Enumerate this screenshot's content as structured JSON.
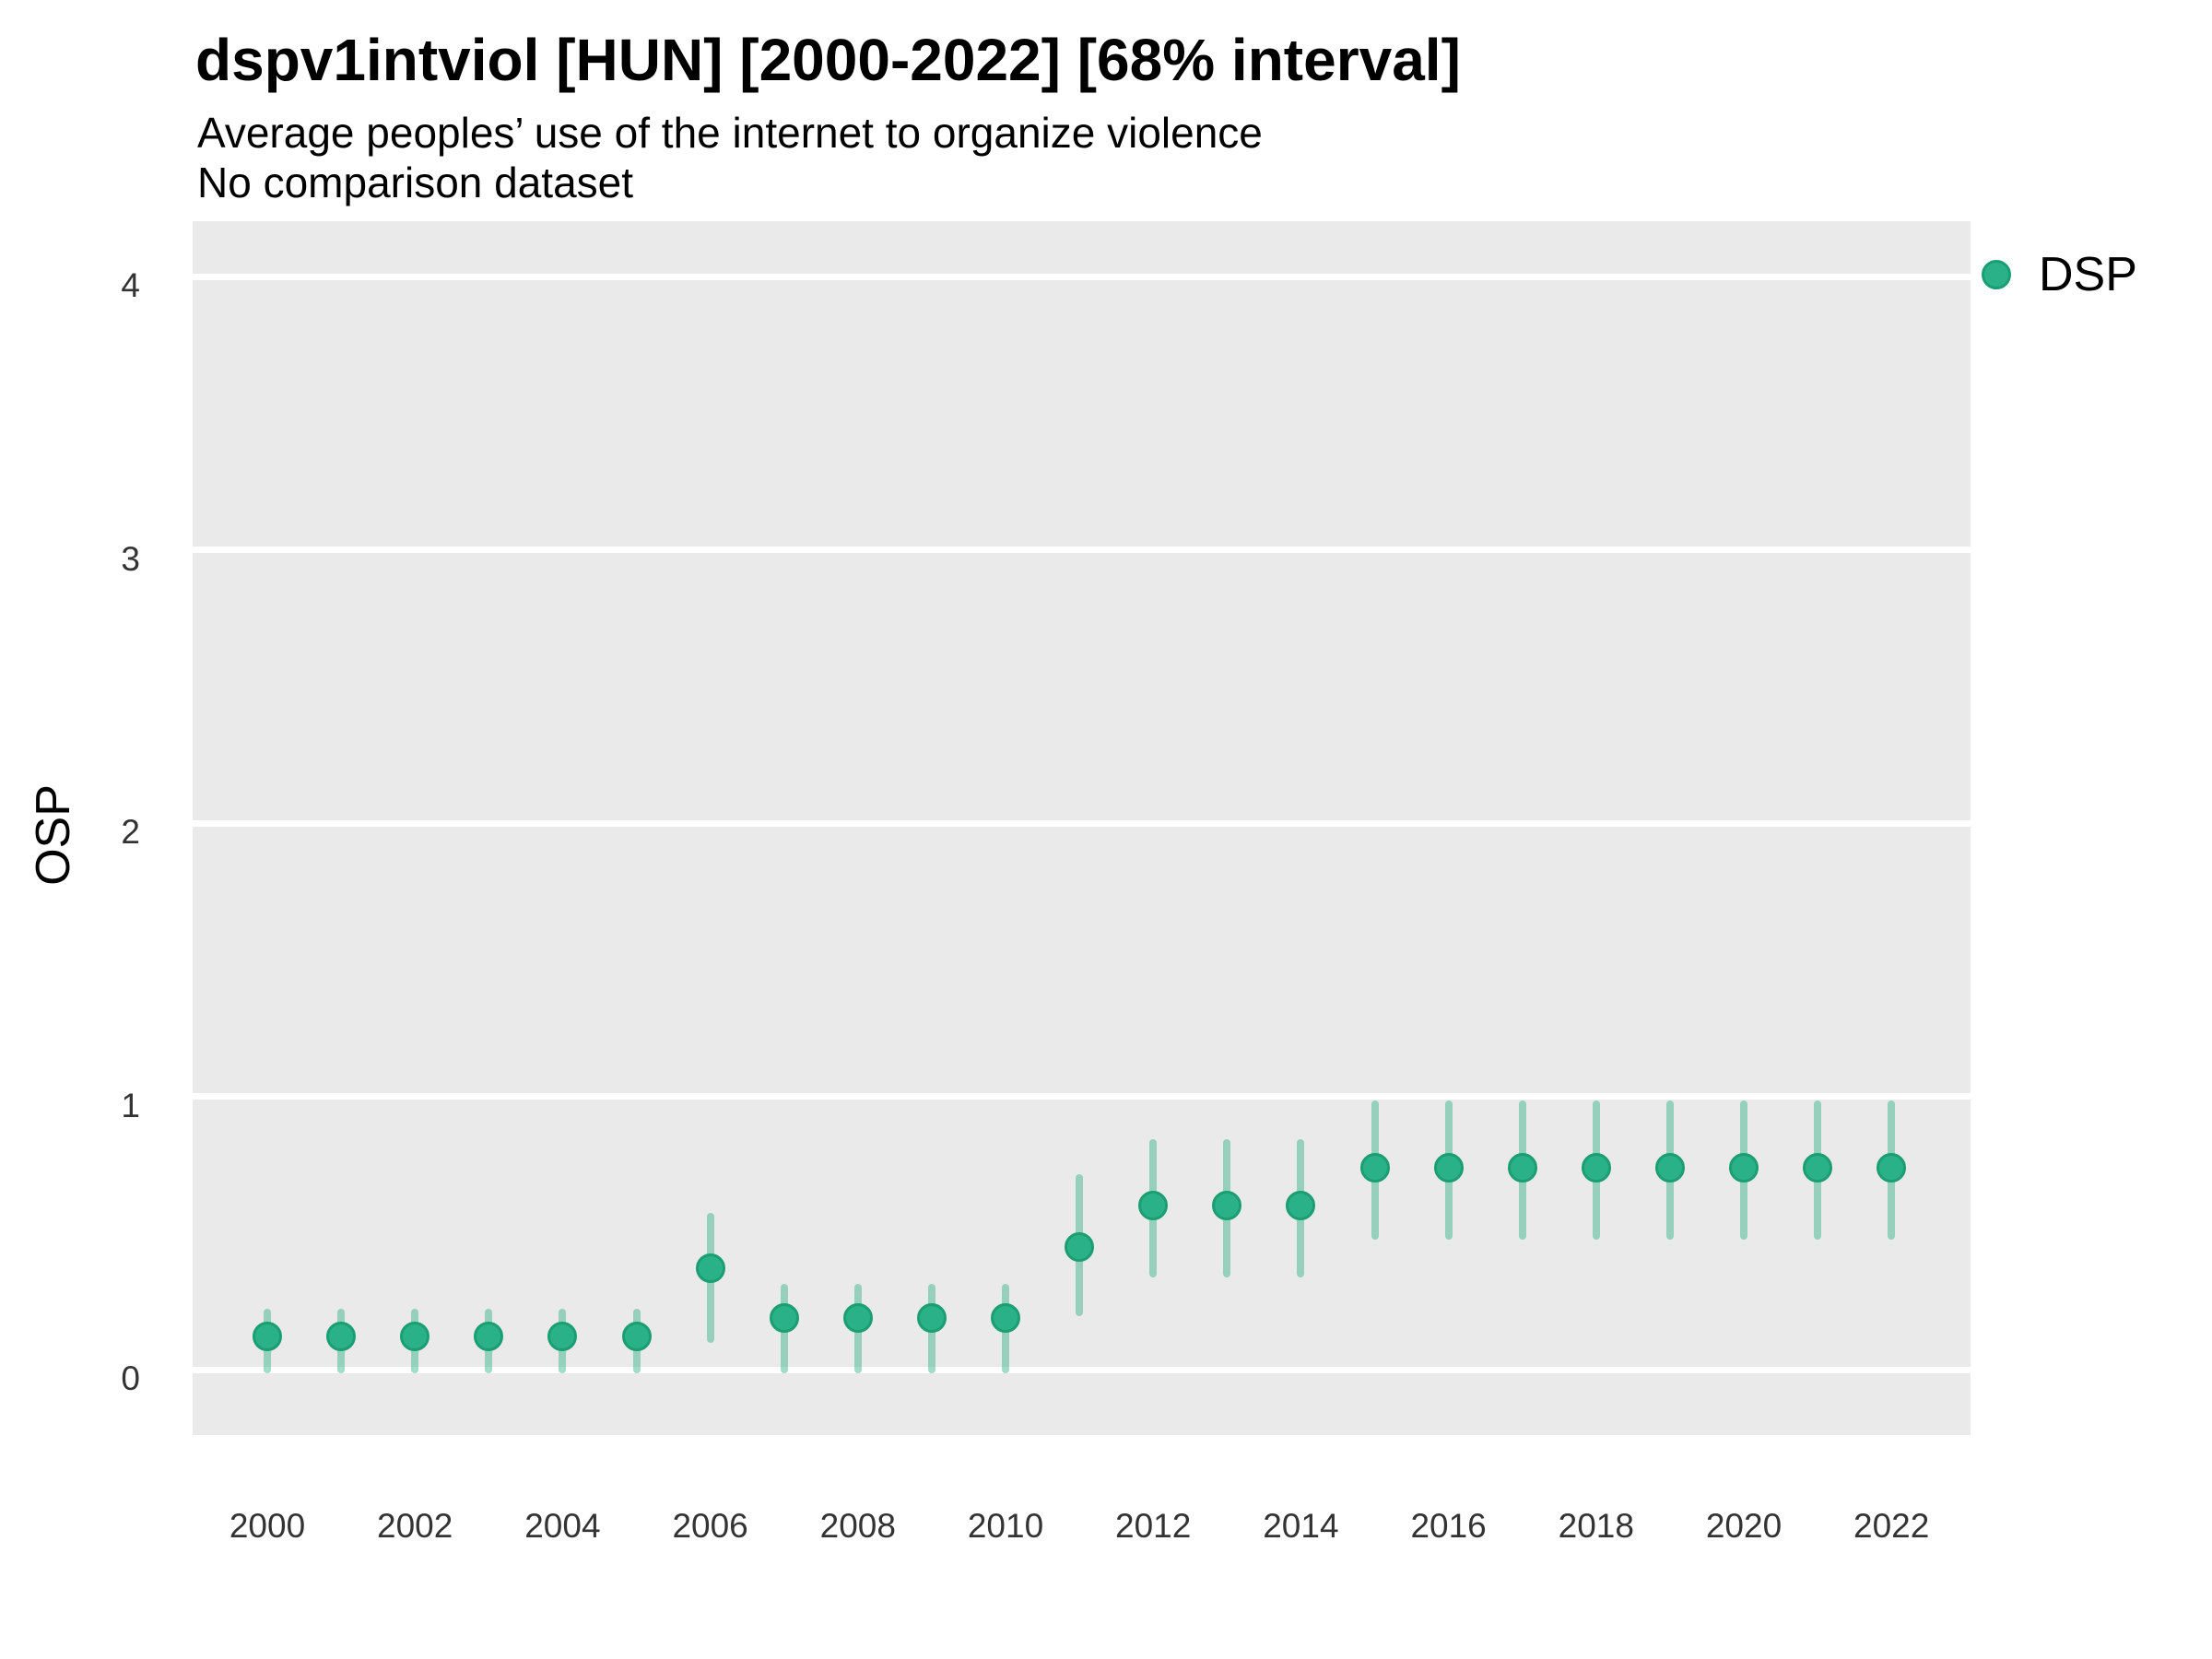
{
  "header": {
    "title": "dspv1intviol [HUN] [2000-2022] [68% interval]",
    "subtitle": "Average peoples’ use of the internet to organize violence",
    "subtitle2": "No comparison dataset"
  },
  "axes": {
    "y_label": "OSP",
    "y_ticks": [
      0,
      1,
      2,
      3,
      4
    ],
    "x_ticks": [
      2000,
      2002,
      2004,
      2006,
      2008,
      2010,
      2012,
      2014,
      2016,
      2018,
      2020,
      2022
    ]
  },
  "legend": {
    "items": [
      {
        "label": "DSP",
        "marker": "circle-icon",
        "color": "#2eb489"
      }
    ]
  },
  "colors": {
    "point_fill": "#2bb187",
    "point_border": "#1a9e72",
    "interval_bar": "rgba(46,177,135,0.45)",
    "panel_bg": "#eaeaea",
    "gridline": "#ffffff",
    "title_text": "#000000",
    "tick_text": "#333333"
  },
  "chart_data": {
    "type": "pointrange",
    "title": "dspv1intviol [HUN] [2000-2022] [68% interval]",
    "subtitle": "Average peoples’ use of the internet to organize violence",
    "caption": "No comparison dataset",
    "xlabel": "",
    "ylabel": "OSP",
    "interval": "68%",
    "ylim": [
      0,
      4
    ],
    "xlim": [
      2000,
      2022
    ],
    "grid": "major-horizontal-white-on-gray",
    "legend_position": "right-top",
    "series": [
      {
        "name": "DSP",
        "points": [
          {
            "year": 2000,
            "est": 0.12,
            "lo": 0.0,
            "hi": 0.21
          },
          {
            "year": 2001,
            "est": 0.12,
            "lo": 0.0,
            "hi": 0.21
          },
          {
            "year": 2002,
            "est": 0.12,
            "lo": 0.0,
            "hi": 0.21
          },
          {
            "year": 2003,
            "est": 0.12,
            "lo": 0.0,
            "hi": 0.21
          },
          {
            "year": 2004,
            "est": 0.12,
            "lo": 0.0,
            "hi": 0.21
          },
          {
            "year": 2005,
            "est": 0.12,
            "lo": 0.0,
            "hi": 0.21
          },
          {
            "year": 2006,
            "est": 0.37,
            "lo": 0.11,
            "hi": 0.56
          },
          {
            "year": 2007,
            "est": 0.19,
            "lo": 0.0,
            "hi": 0.3
          },
          {
            "year": 2008,
            "est": 0.19,
            "lo": 0.0,
            "hi": 0.3
          },
          {
            "year": 2009,
            "est": 0.19,
            "lo": 0.0,
            "hi": 0.3
          },
          {
            "year": 2010,
            "est": 0.19,
            "lo": 0.0,
            "hi": 0.3
          },
          {
            "year": 2011,
            "est": 0.45,
            "lo": 0.21,
            "hi": 0.7
          },
          {
            "year": 2012,
            "est": 0.6,
            "lo": 0.35,
            "hi": 0.83
          },
          {
            "year": 2013,
            "est": 0.6,
            "lo": 0.35,
            "hi": 0.83
          },
          {
            "year": 2014,
            "est": 0.6,
            "lo": 0.35,
            "hi": 0.83
          },
          {
            "year": 2015,
            "est": 0.74,
            "lo": 0.49,
            "hi": 0.97
          },
          {
            "year": 2016,
            "est": 0.74,
            "lo": 0.49,
            "hi": 0.97
          },
          {
            "year": 2017,
            "est": 0.74,
            "lo": 0.49,
            "hi": 0.97
          },
          {
            "year": 2018,
            "est": 0.74,
            "lo": 0.49,
            "hi": 0.97
          },
          {
            "year": 2019,
            "est": 0.74,
            "lo": 0.49,
            "hi": 0.97
          },
          {
            "year": 2020,
            "est": 0.74,
            "lo": 0.49,
            "hi": 0.97
          },
          {
            "year": 2021,
            "est": 0.74,
            "lo": 0.49,
            "hi": 0.97
          },
          {
            "year": 2022,
            "est": 0.74,
            "lo": 0.49,
            "hi": 0.97
          }
        ]
      }
    ]
  }
}
